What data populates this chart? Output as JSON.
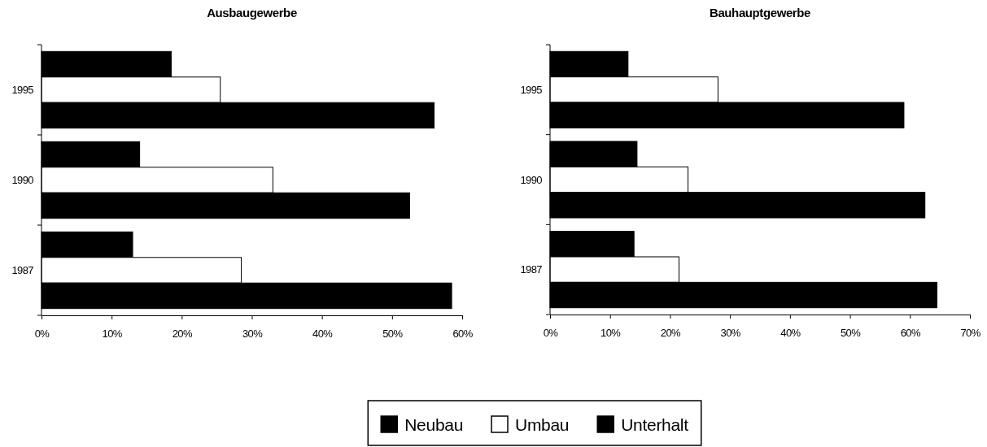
{
  "chart_data": [
    {
      "type": "bar",
      "orientation": "horizontal",
      "title": "Ausbaugewerbe",
      "categories": [
        "1995",
        "1990",
        "1987"
      ],
      "series": [
        {
          "name": "Neubau",
          "color": "#000000",
          "values": [
            18.5,
            14,
            13
          ]
        },
        {
          "name": "Umbau",
          "color": "#ffffff",
          "values": [
            25.5,
            33,
            28.5
          ]
        },
        {
          "name": "Unterhalt",
          "color": "#000000",
          "values": [
            56,
            52.5,
            58.5
          ]
        }
      ],
      "xlim": [
        0,
        60
      ],
      "xticks": [
        {
          "value": 0,
          "label": "0%"
        },
        {
          "value": 10,
          "label": "10%"
        },
        {
          "value": 20,
          "label": "20%"
        },
        {
          "value": 30,
          "label": "30%"
        },
        {
          "value": 40,
          "label": "40%"
        },
        {
          "value": 50,
          "label": "50%"
        },
        {
          "value": 60,
          "label": "60%"
        }
      ],
      "legend": "bottom"
    },
    {
      "type": "bar",
      "orientation": "horizontal",
      "title": "Bauhauptgewerbe",
      "categories": [
        "1995",
        "1990",
        "1987"
      ],
      "series": [
        {
          "name": "Neubau",
          "color": "#000000",
          "values": [
            13,
            14.5,
            14
          ]
        },
        {
          "name": "Umbau",
          "color": "#ffffff",
          "values": [
            28,
            23,
            21.5
          ]
        },
        {
          "name": "Unterhalt",
          "color": "#000000",
          "values": [
            59,
            62.5,
            64.5
          ]
        }
      ],
      "xlim": [
        0,
        70
      ],
      "xticks": [
        {
          "value": 0,
          "label": "0%"
        },
        {
          "value": 10,
          "label": "10%"
        },
        {
          "value": 20,
          "label": "20%"
        },
        {
          "value": 30,
          "label": "30%"
        },
        {
          "value": 40,
          "label": "40%"
        },
        {
          "value": 50,
          "label": "50%"
        },
        {
          "value": 60,
          "label": "60%"
        },
        {
          "value": 70,
          "label": "70%"
        }
      ],
      "legend": "bottom"
    }
  ]
}
